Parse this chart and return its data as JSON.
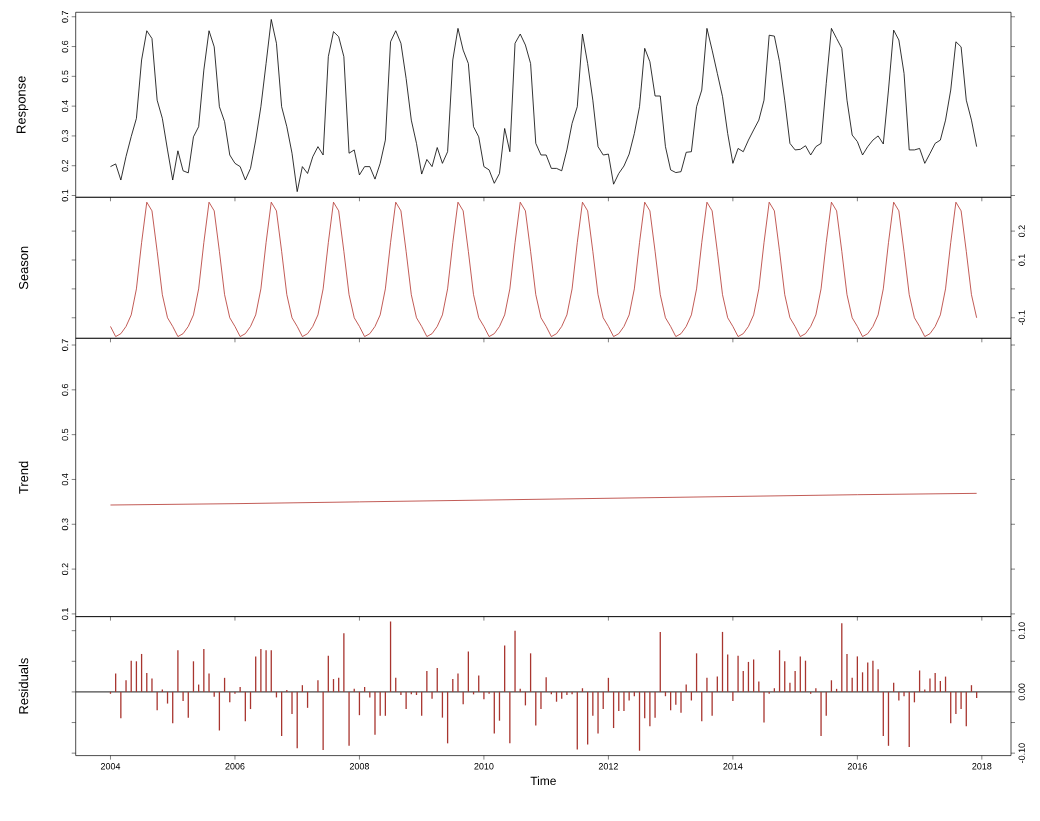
{
  "chart_data": [
    {
      "type": "line",
      "ylabel": "Response",
      "tick_labels": "y",
      "x": [
        "2004-01",
        "2004-02",
        "2004-03",
        "2004-04",
        "2004-05",
        "2004-06",
        "2004-07",
        "2004-08",
        "2004-09",
        "2004-10",
        "2004-11",
        "2004-12",
        "2005-01",
        "2005-02",
        "2005-03",
        "2005-04",
        "2005-05",
        "2005-06",
        "2005-07",
        "2005-08",
        "2005-09",
        "2005-10",
        "2005-11",
        "2005-12",
        "2006-01",
        "2006-02",
        "2006-03",
        "2006-04",
        "2006-05",
        "2006-06",
        "2006-07",
        "2006-08",
        "2006-09",
        "2006-10",
        "2006-11",
        "2006-12",
        "2007-01",
        "2007-02",
        "2007-03",
        "2007-04",
        "2007-05",
        "2007-06",
        "2007-07",
        "2007-08",
        "2007-09",
        "2007-10",
        "2007-11",
        "2007-12",
        "2008-01",
        "2008-02",
        "2008-03",
        "2008-04",
        "2008-05",
        "2008-06",
        "2008-07",
        "2008-08",
        "2008-09",
        "2008-10",
        "2008-11",
        "2008-12",
        "2009-01",
        "2009-02",
        "2009-03",
        "2009-04",
        "2009-05",
        "2009-06",
        "2009-07",
        "2009-08",
        "2009-09",
        "2009-10",
        "2009-11",
        "2009-12",
        "2010-01",
        "2010-02",
        "2010-03",
        "2010-04",
        "2010-05",
        "2010-06",
        "2010-07",
        "2010-08",
        "2010-09",
        "2010-10",
        "2010-11",
        "2010-12",
        "2011-01",
        "2011-02",
        "2011-03",
        "2011-04",
        "2011-05",
        "2011-06",
        "2011-07",
        "2011-08",
        "2011-09",
        "2011-10",
        "2011-11",
        "2011-12",
        "2012-01",
        "2012-02",
        "2012-03",
        "2012-04",
        "2012-05",
        "2012-06",
        "2012-07",
        "2012-08",
        "2012-09",
        "2012-10",
        "2012-11",
        "2012-12",
        "2013-01",
        "2013-02",
        "2013-03",
        "2013-04",
        "2013-05",
        "2013-06",
        "2013-07",
        "2013-08",
        "2013-09",
        "2013-10",
        "2013-11",
        "2013-12",
        "2014-01",
        "2014-02",
        "2014-03",
        "2014-04",
        "2014-05",
        "2014-06",
        "2014-07",
        "2014-08",
        "2014-09",
        "2014-10",
        "2014-11",
        "2014-12",
        "2015-01",
        "2015-02",
        "2015-03",
        "2015-04",
        "2015-05",
        "2015-06",
        "2015-07",
        "2015-08",
        "2015-09",
        "2015-10",
        "2015-11",
        "2015-12",
        "2016-01",
        "2016-02",
        "2016-03",
        "2016-04",
        "2016-05",
        "2016-06",
        "2016-07",
        "2016-08",
        "2016-09",
        "2016-10",
        "2016-11",
        "2016-12",
        "2017-01",
        "2017-02",
        "2017-03",
        "2017-04",
        "2017-05",
        "2017-06",
        "2017-07",
        "2017-08",
        "2017-09",
        "2017-10",
        "2017-11",
        "2017-12"
      ],
      "xlim": [
        "2003-06-10",
        "2018-06-20"
      ],
      "xticks": [
        "2004",
        "2006",
        "2008",
        "2010",
        "2012",
        "2014",
        "2016",
        "2018"
      ],
      "ylim": [
        0.094,
        0.715
      ],
      "yticks": [
        0.1,
        0.2,
        0.3,
        0.4,
        0.5,
        0.6,
        0.7
      ],
      "series": [
        {
          "color": "#000000",
          "values": [
            0.197,
            0.206,
            0.152,
            0.231,
            0.298,
            0.359,
            0.555,
            0.653,
            0.627,
            0.42,
            0.359,
            0.253,
            0.152,
            0.25,
            0.183,
            0.176,
            0.297,
            0.331,
            0.521,
            0.653,
            0.599,
            0.398,
            0.348,
            0.236,
            0.208,
            0.197,
            0.152,
            0.191,
            0.286,
            0.398,
            0.543,
            0.691,
            0.611,
            0.398,
            0.331,
            0.242,
            0.113,
            0.197,
            0.174,
            0.23,
            0.264,
            0.236,
            0.566,
            0.65,
            0.633,
            0.566,
            0.242,
            0.253,
            0.169,
            0.197,
            0.197,
            0.155,
            0.208,
            0.286,
            0.616,
            0.653,
            0.611,
            0.493,
            0.353,
            0.275,
            0.172,
            0.221,
            0.197,
            0.261,
            0.208,
            0.247,
            0.555,
            0.661,
            0.588,
            0.543,
            0.331,
            0.297,
            0.197,
            0.186,
            0.141,
            0.174,
            0.325,
            0.247,
            0.611,
            0.642,
            0.605,
            0.543,
            0.275,
            0.236,
            0.236,
            0.191,
            0.191,
            0.183,
            0.253,
            0.342,
            0.398,
            0.642,
            0.543,
            0.42,
            0.264,
            0.236,
            0.239,
            0.138,
            0.174,
            0.199,
            0.239,
            0.308,
            0.398,
            0.594,
            0.549,
            0.434,
            0.434,
            0.264,
            0.186,
            0.177,
            0.18,
            0.245,
            0.247,
            0.398,
            0.454,
            0.661,
            0.588,
            0.51,
            0.432,
            0.308,
            0.208,
            0.258,
            0.247,
            0.286,
            0.32,
            0.353,
            0.42,
            0.638,
            0.635,
            0.549,
            0.42,
            0.275,
            0.253,
            0.255,
            0.267,
            0.236,
            0.264,
            0.275,
            0.476,
            0.661,
            0.627,
            0.594,
            0.42,
            0.303,
            0.281,
            0.236,
            0.264,
            0.286,
            0.3,
            0.273,
            0.454,
            0.655,
            0.622,
            0.51,
            0.253,
            0.253,
            0.258,
            0.208,
            0.241,
            0.275,
            0.286,
            0.353,
            0.454,
            0.616,
            0.599,
            0.42,
            0.353,
            0.264
          ]
        }
      ]
    },
    {
      "type": "line",
      "ylabel": "Season",
      "tick_labels": "y",
      "x": [
        "2004-01",
        "2004-02",
        "2004-03",
        "2004-04",
        "2004-05",
        "2004-06",
        "2004-07",
        "2004-08",
        "2004-09",
        "2004-10",
        "2004-11",
        "2004-12",
        "2005-01",
        "2005-02",
        "2005-03",
        "2005-04",
        "2005-05",
        "2005-06",
        "2005-07",
        "2005-08",
        "2005-09",
        "2005-10",
        "2005-11",
        "2005-12",
        "2006-01",
        "2006-02",
        "2006-03",
        "2006-04",
        "2006-05",
        "2006-06",
        "2006-07",
        "2006-08",
        "2006-09",
        "2006-10",
        "2006-11",
        "2006-12",
        "2007-01",
        "2007-02",
        "2007-03",
        "2007-04",
        "2007-05",
        "2007-06",
        "2007-07",
        "2007-08",
        "2007-09",
        "2007-10",
        "2007-11",
        "2007-12",
        "2008-01",
        "2008-02",
        "2008-03",
        "2008-04",
        "2008-05",
        "2008-06",
        "2008-07",
        "2008-08",
        "2008-09",
        "2008-10",
        "2008-11",
        "2008-12",
        "2009-01",
        "2009-02",
        "2009-03",
        "2009-04",
        "2009-05",
        "2009-06",
        "2009-07",
        "2009-08",
        "2009-09",
        "2009-10",
        "2009-11",
        "2009-12",
        "2010-01",
        "2010-02",
        "2010-03",
        "2010-04",
        "2010-05",
        "2010-06",
        "2010-07",
        "2010-08",
        "2010-09",
        "2010-10",
        "2010-11",
        "2010-12",
        "2011-01",
        "2011-02",
        "2011-03",
        "2011-04",
        "2011-05",
        "2011-06",
        "2011-07",
        "2011-08",
        "2011-09",
        "2011-10",
        "2011-11",
        "2011-12",
        "2012-01",
        "2012-02",
        "2012-03",
        "2012-04",
        "2012-05",
        "2012-06",
        "2012-07",
        "2012-08",
        "2012-09",
        "2012-10",
        "2012-11",
        "2012-12",
        "2013-01",
        "2013-02",
        "2013-03",
        "2013-04",
        "2013-05",
        "2013-06",
        "2013-07",
        "2013-08",
        "2013-09",
        "2013-10",
        "2013-11",
        "2013-12",
        "2014-01",
        "2014-02",
        "2014-03",
        "2014-04",
        "2014-05",
        "2014-06",
        "2014-07",
        "2014-08",
        "2014-09",
        "2014-10",
        "2014-11",
        "2014-12",
        "2015-01",
        "2015-02",
        "2015-03",
        "2015-04",
        "2015-05",
        "2015-06",
        "2015-07",
        "2015-08",
        "2015-09",
        "2015-10",
        "2015-11",
        "2015-12",
        "2016-01",
        "2016-02",
        "2016-03",
        "2016-04",
        "2016-05",
        "2016-06",
        "2016-07",
        "2016-08",
        "2016-09",
        "2016-10",
        "2016-11",
        "2016-12",
        "2017-01",
        "2017-02",
        "2017-03",
        "2017-04",
        "2017-05",
        "2017-06",
        "2017-07",
        "2017-08",
        "2017-09",
        "2017-10",
        "2017-11",
        "2017-12"
      ],
      "xlim": [
        "2003-06-10",
        "2018-06-20"
      ],
      "xticks": [
        "2004",
        "2006",
        "2008",
        "2010",
        "2012",
        "2014",
        "2016",
        "2018"
      ],
      "y2lim": [
        -0.171,
        0.317
      ],
      "y2ticks": [
        -0.1,
        {
          "value": 0,
          "label": null
        },
        0.1,
        0.2
      ],
      "series": [
        {
          "color": "#b3322c",
          "axis": "y2",
          "values": [
            -0.13,
            -0.165,
            -0.155,
            -0.13,
            -0.09,
            0.0,
            0.16,
            0.3,
            0.27,
            0.13,
            -0.02,
            -0.1,
            -0.13,
            -0.165,
            -0.155,
            -0.13,
            -0.09,
            0.0,
            0.16,
            0.3,
            0.27,
            0.13,
            -0.02,
            -0.1,
            -0.13,
            -0.165,
            -0.155,
            -0.13,
            -0.09,
            0.0,
            0.16,
            0.3,
            0.27,
            0.13,
            -0.02,
            -0.1,
            -0.13,
            -0.165,
            -0.155,
            -0.13,
            -0.09,
            0.0,
            0.16,
            0.3,
            0.27,
            0.13,
            -0.02,
            -0.1,
            -0.13,
            -0.165,
            -0.155,
            -0.13,
            -0.09,
            0.0,
            0.16,
            0.3,
            0.27,
            0.13,
            -0.02,
            -0.1,
            -0.13,
            -0.165,
            -0.155,
            -0.13,
            -0.09,
            0.0,
            0.16,
            0.3,
            0.27,
            0.13,
            -0.02,
            -0.1,
            -0.13,
            -0.165,
            -0.155,
            -0.13,
            -0.09,
            0.0,
            0.16,
            0.3,
            0.27,
            0.13,
            -0.02,
            -0.1,
            -0.13,
            -0.165,
            -0.155,
            -0.13,
            -0.09,
            0.0,
            0.16,
            0.3,
            0.27,
            0.13,
            -0.02,
            -0.1,
            -0.13,
            -0.165,
            -0.155,
            -0.13,
            -0.09,
            0.0,
            0.16,
            0.3,
            0.27,
            0.13,
            -0.02,
            -0.1,
            -0.13,
            -0.165,
            -0.155,
            -0.13,
            -0.09,
            0.0,
            0.16,
            0.3,
            0.27,
            0.13,
            -0.02,
            -0.1,
            -0.13,
            -0.165,
            -0.155,
            -0.13,
            -0.09,
            0.0,
            0.16,
            0.3,
            0.27,
            0.13,
            -0.02,
            -0.1,
            -0.13,
            -0.165,
            -0.155,
            -0.13,
            -0.09,
            0.0,
            0.16,
            0.3,
            0.27,
            0.13,
            -0.02,
            -0.1,
            -0.13,
            -0.165,
            -0.155,
            -0.13,
            -0.09,
            0.0,
            0.16,
            0.3,
            0.27,
            0.13,
            -0.02,
            -0.1,
            -0.13,
            -0.165,
            -0.155,
            -0.13,
            -0.09,
            0.0,
            0.16,
            0.3,
            0.27,
            0.13,
            -0.02,
            -0.1
          ]
        }
      ]
    },
    {
      "type": "line",
      "ylabel": "Trend",
      "tick_labels": "y",
      "xlim": [
        "2003-06-10",
        "2018-06-20"
      ],
      "xticks": [
        "2004",
        "2006",
        "2008",
        "2010",
        "2012",
        "2014",
        "2016",
        "2018"
      ],
      "ylim": [
        0.094,
        0.715
      ],
      "yticks": [
        0.1,
        0.2,
        0.3,
        0.4,
        0.5,
        0.6,
        0.7
      ],
      "series": [
        {
          "color": "#b3322c",
          "x": [
            "2004-01",
            "2006-01",
            "2008-01",
            "2010-01",
            "2012-01",
            "2014-01",
            "2016-01",
            "2017-12"
          ],
          "values": [
            0.343,
            0.346,
            0.35,
            0.354,
            0.358,
            0.362,
            0.366,
            0.369
          ]
        }
      ]
    },
    {
      "type": "bar",
      "ylabel": "Residuals",
      "xlabel": "Time",
      "x": [
        "2004-01",
        "2004-02",
        "2004-03",
        "2004-04",
        "2004-05",
        "2004-06",
        "2004-07",
        "2004-08",
        "2004-09",
        "2004-10",
        "2004-11",
        "2004-12",
        "2005-01",
        "2005-02",
        "2005-03",
        "2005-04",
        "2005-05",
        "2005-06",
        "2005-07",
        "2005-08",
        "2005-09",
        "2005-10",
        "2005-11",
        "2005-12",
        "2006-01",
        "2006-02",
        "2006-03",
        "2006-04",
        "2006-05",
        "2006-06",
        "2006-07",
        "2006-08",
        "2006-09",
        "2006-10",
        "2006-11",
        "2006-12",
        "2007-01",
        "2007-02",
        "2007-03",
        "2007-04",
        "2007-05",
        "2007-06",
        "2007-07",
        "2007-08",
        "2007-09",
        "2007-10",
        "2007-11",
        "2007-12",
        "2008-01",
        "2008-02",
        "2008-03",
        "2008-04",
        "2008-05",
        "2008-06",
        "2008-07",
        "2008-08",
        "2008-09",
        "2008-10",
        "2008-11",
        "2008-12",
        "2009-01",
        "2009-02",
        "2009-03",
        "2009-04",
        "2009-05",
        "2009-06",
        "2009-07",
        "2009-08",
        "2009-09",
        "2009-10",
        "2009-11",
        "2009-12",
        "2010-01",
        "2010-02",
        "2010-03",
        "2010-04",
        "2010-05",
        "2010-06",
        "2010-07",
        "2010-08",
        "2010-09",
        "2010-10",
        "2010-11",
        "2010-12",
        "2011-01",
        "2011-02",
        "2011-03",
        "2011-04",
        "2011-05",
        "2011-06",
        "2011-07",
        "2011-08",
        "2011-09",
        "2011-10",
        "2011-11",
        "2011-12",
        "2012-01",
        "2012-02",
        "2012-03",
        "2012-04",
        "2012-05",
        "2012-06",
        "2012-07",
        "2012-08",
        "2012-09",
        "2012-10",
        "2012-11",
        "2012-12",
        "2013-01",
        "2013-02",
        "2013-03",
        "2013-04",
        "2013-05",
        "2013-06",
        "2013-07",
        "2013-08",
        "2013-09",
        "2013-10",
        "2013-11",
        "2013-12",
        "2014-01",
        "2014-02",
        "2014-03",
        "2014-04",
        "2014-05",
        "2014-06",
        "2014-07",
        "2014-08",
        "2014-09",
        "2014-10",
        "2014-11",
        "2014-12",
        "2015-01",
        "2015-02",
        "2015-03",
        "2015-04",
        "2015-05",
        "2015-06",
        "2015-07",
        "2015-08",
        "2015-09",
        "2015-10",
        "2015-11",
        "2015-12",
        "2016-01",
        "2016-02",
        "2016-03",
        "2016-04",
        "2016-05",
        "2016-06",
        "2016-07",
        "2016-08",
        "2016-09",
        "2016-10",
        "2016-11",
        "2016-12",
        "2017-01",
        "2017-02",
        "2017-03",
        "2017-04",
        "2017-05",
        "2017-06",
        "2017-07",
        "2017-08",
        "2017-09",
        "2017-10",
        "2017-11",
        "2017-12"
      ],
      "xlim": [
        "2003-06-10",
        "2018-06-20"
      ],
      "xticks": [
        "2004",
        "2006",
        "2008",
        "2010",
        "2012",
        "2014",
        "2016",
        "2018"
      ],
      "y2lim": [
        -0.104,
        0.123
      ],
      "y2ticks": [
        {
          "value": -0.1,
          "label": "-0.10"
        },
        {
          "value": -0.05,
          "label": null
        },
        {
          "value": 0,
          "label": "0.00"
        },
        {
          "value": 0.05,
          "label": null
        },
        {
          "value": 0.1,
          "label": "0.10"
        }
      ],
      "ref_lines": [
        {
          "axis": "y2",
          "value": 0,
          "color": "#000000"
        }
      ],
      "series": [
        {
          "color": "#a8352f",
          "axis": "y2",
          "values": [
            -0.003,
            0.03,
            -0.043,
            0.019,
            0.051,
            0.05,
            0.062,
            0.031,
            0.022,
            -0.03,
            0.004,
            -0.019,
            -0.051,
            0.068,
            -0.015,
            -0.042,
            0.05,
            0.012,
            0.07,
            0.03,
            -0.008,
            -0.063,
            0.023,
            -0.017,
            -0.003,
            0.008,
            -0.048,
            -0.028,
            0.058,
            0.07,
            0.068,
            0.068,
            -0.009,
            -0.072,
            0.003,
            -0.036,
            -0.092,
            0.011,
            -0.026,
            null,
            0.019,
            -0.095,
            0.059,
            0.021,
            0.023,
            0.096,
            -0.088,
            0.005,
            -0.038,
            0.008,
            -0.009,
            -0.07,
            -0.039,
            -0.039,
            0.115,
            0.023,
            -0.005,
            -0.028,
            -0.004,
            -0.005,
            -0.039,
            0.034,
            -0.011,
            0.039,
            -0.042,
            -0.084,
            0.021,
            0.03,
            -0.02,
            0.066,
            -0.004,
            0.027,
            -0.012,
            -0.003,
            -0.068,
            -0.047,
            0.076,
            -0.084,
            0.1,
            0.005,
            -0.022,
            0.063,
            -0.055,
            -0.028,
            0.024,
            -0.004,
            -0.016,
            -0.011,
            -0.005,
            -0.004,
            -0.094,
            0.006,
            -0.086,
            -0.039,
            -0.068,
            -0.028,
            0.023,
            -0.059,
            -0.031,
            -0.031,
            -0.014,
            -0.007,
            -0.096,
            -0.043,
            -0.056,
            -0.042,
            0.098,
            -0.007,
            -0.03,
            -0.021,
            -0.034,
            0.012,
            -0.014,
            0.063,
            -0.048,
            0.023,
            -0.039,
            0.025,
            0.098,
            0.061,
            -0.015,
            0.059,
            0.034,
            0.049,
            0.053,
            0.017,
            -0.05,
            -0.003,
            0.006,
            0.068,
            0.05,
            0.015,
            0.034,
            0.058,
            0.051,
            -0.003,
            0.006,
            -0.072,
            -0.039,
            0.019,
            0.005,
            0.112,
            0.062,
            0.023,
            0.058,
            0.032,
            0.048,
            0.051,
            0.037,
            -0.072,
            -0.088,
            0.015,
            -0.014,
            -0.007,
            -0.09,
            -0.017,
            0.035,
            0.004,
            0.022,
            0.031,
            0.018,
            0.025,
            -0.051,
            -0.036,
            -0.028,
            -0.056,
            0.011,
            -0.01
          ]
        }
      ]
    }
  ]
}
